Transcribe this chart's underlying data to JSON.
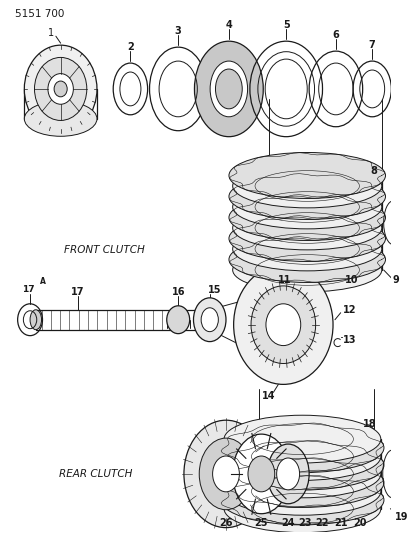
{
  "bg_color": "#ffffff",
  "line_color": "#1a1a1a",
  "title": "5151 700",
  "front_clutch_label": "FRONT CLUTCH",
  "rear_clutch_label": "REAR CLUTCH",
  "fig_w": 4.08,
  "fig_h": 5.33,
  "dpi": 100
}
